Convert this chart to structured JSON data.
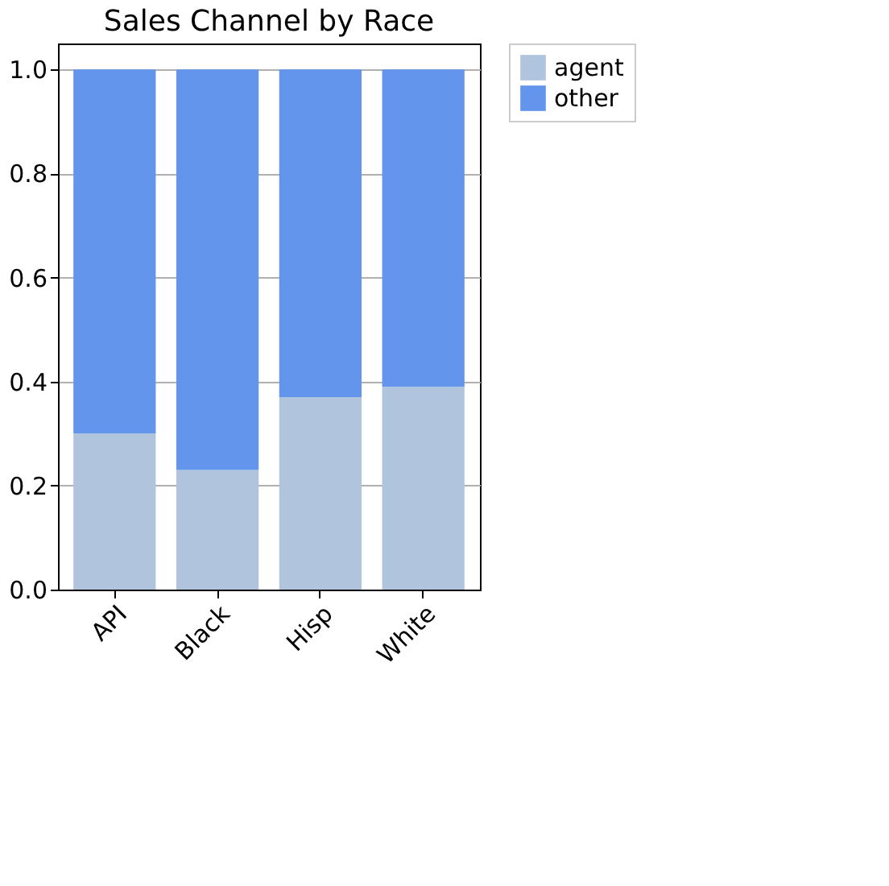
{
  "chart_data": {
    "type": "bar",
    "title": "Sales Channel by Race",
    "categories": [
      "API",
      "Black",
      "Hisp",
      "White"
    ],
    "stacked": true,
    "series": [
      {
        "name": "agent",
        "color": "#b0c4de",
        "values": [
          0.3,
          0.23,
          0.37,
          0.39
        ]
      },
      {
        "name": "other",
        "color": "#6495ed",
        "values": [
          0.7,
          0.77,
          0.63,
          0.61
        ]
      }
    ],
    "ylim": [
      0,
      1.05
    ],
    "yticks": [
      {
        "value": 0,
        "label": "0.0"
      },
      0.2,
      0.4,
      0.6,
      0.8,
      {
        "value": 1,
        "label": "1.0"
      }
    ],
    "grid": "y",
    "legend": "right"
  }
}
